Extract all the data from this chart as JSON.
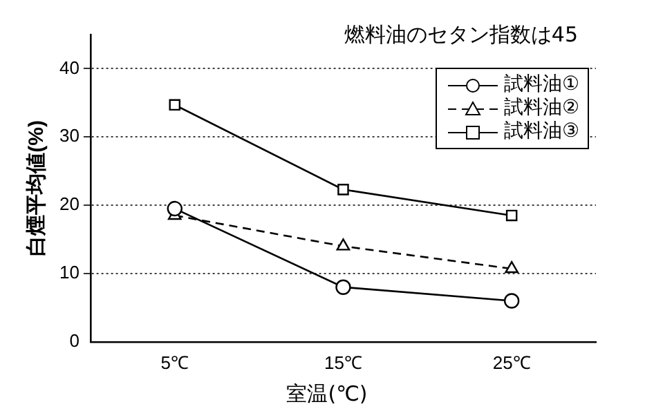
{
  "chart_data": {
    "type": "line",
    "title": "燃料油のセタン指数は45",
    "xlabel": "室温(℃)",
    "ylabel": "白煙平均値(%)",
    "categories": [
      "5℃",
      "15℃",
      "25℃"
    ],
    "ylim": [
      0,
      45
    ],
    "yticks": [
      0,
      10,
      20,
      30,
      40
    ],
    "grid": "y",
    "legend": "top right",
    "series": [
      {
        "name": "試料油①",
        "color": "#000000",
        "marker": "circle",
        "line_style": "solid",
        "values": [
          19.5,
          8,
          6
        ]
      },
      {
        "name": "試料油②",
        "color": "#000000",
        "marker": "triangle",
        "line_style": "dashed",
        "values": [
          18.5,
          14,
          10.7
        ]
      },
      {
        "name": "試料油③",
        "color": "#000000",
        "marker": "square",
        "line_style": "solid",
        "values": [
          34.7,
          22.3,
          18.5
        ]
      }
    ]
  }
}
